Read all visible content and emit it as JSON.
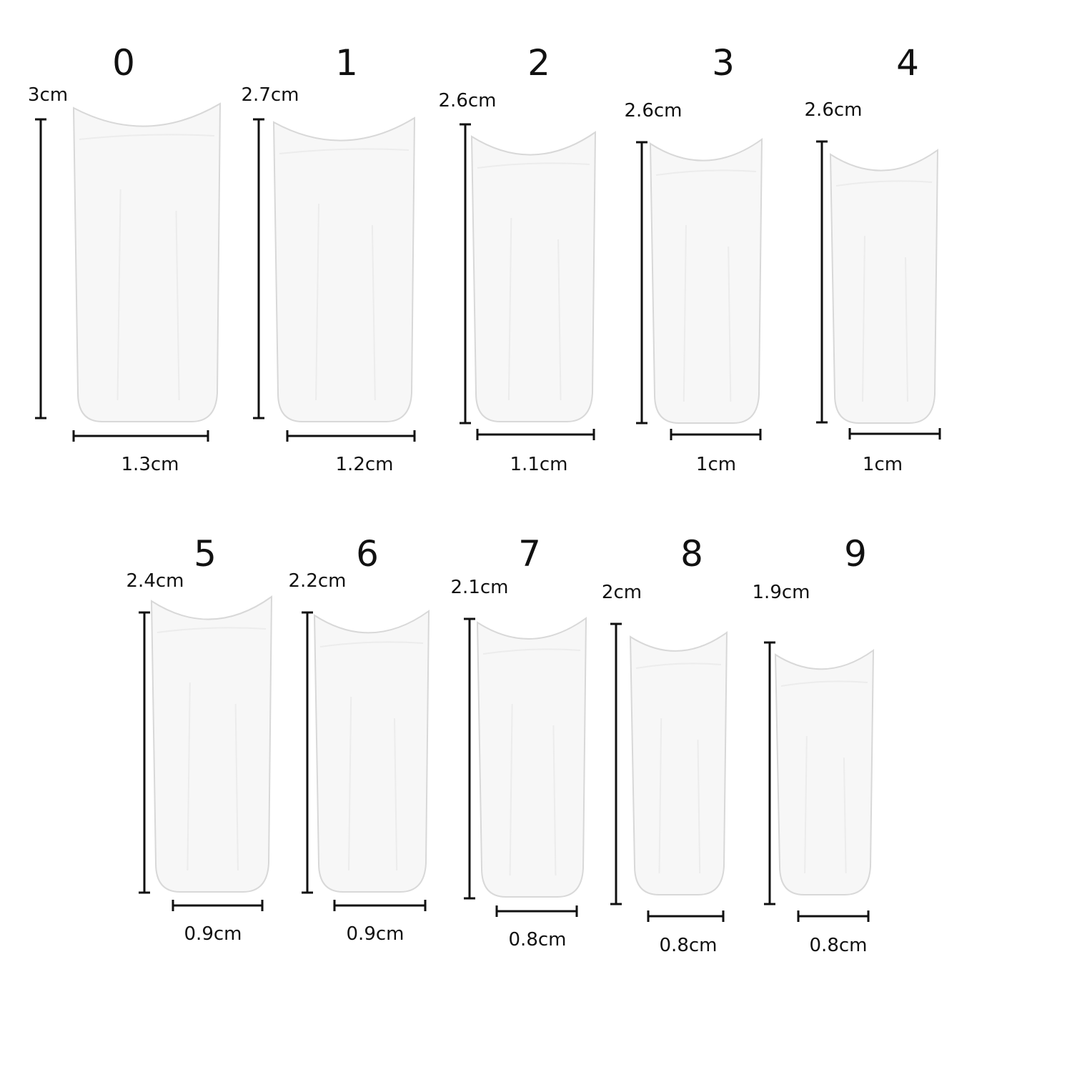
{
  "sizes": [
    {
      "number": "0",
      "length": "3cm",
      "width": "1.3cm"
    },
    {
      "number": "1",
      "length": "2.7cm",
      "width": "1.2cm"
    },
    {
      "number": "2",
      "length": "2.6cm",
      "width": "1.1cm"
    },
    {
      "number": "3",
      "length": "2.6cm",
      "width": "1cm"
    },
    {
      "number": "4",
      "length": "2.6cm",
      "width": "1cm"
    },
    {
      "number": "5",
      "length": "2.4cm",
      "width": "0.9cm"
    },
    {
      "number": "6",
      "length": "2.2cm",
      "width": "0.9cm"
    },
    {
      "number": "7",
      "length": "2.1cm",
      "width": "0.8cm"
    },
    {
      "number": "8",
      "length": "2cm",
      "width": "0.8cm"
    },
    {
      "number": "9",
      "length": "1.9cm",
      "width": "0.8cm"
    }
  ],
  "colors": {
    "line": "#111111",
    "nail_fill": "#f7f7f7",
    "nail_edge": "#d8d8d8"
  }
}
